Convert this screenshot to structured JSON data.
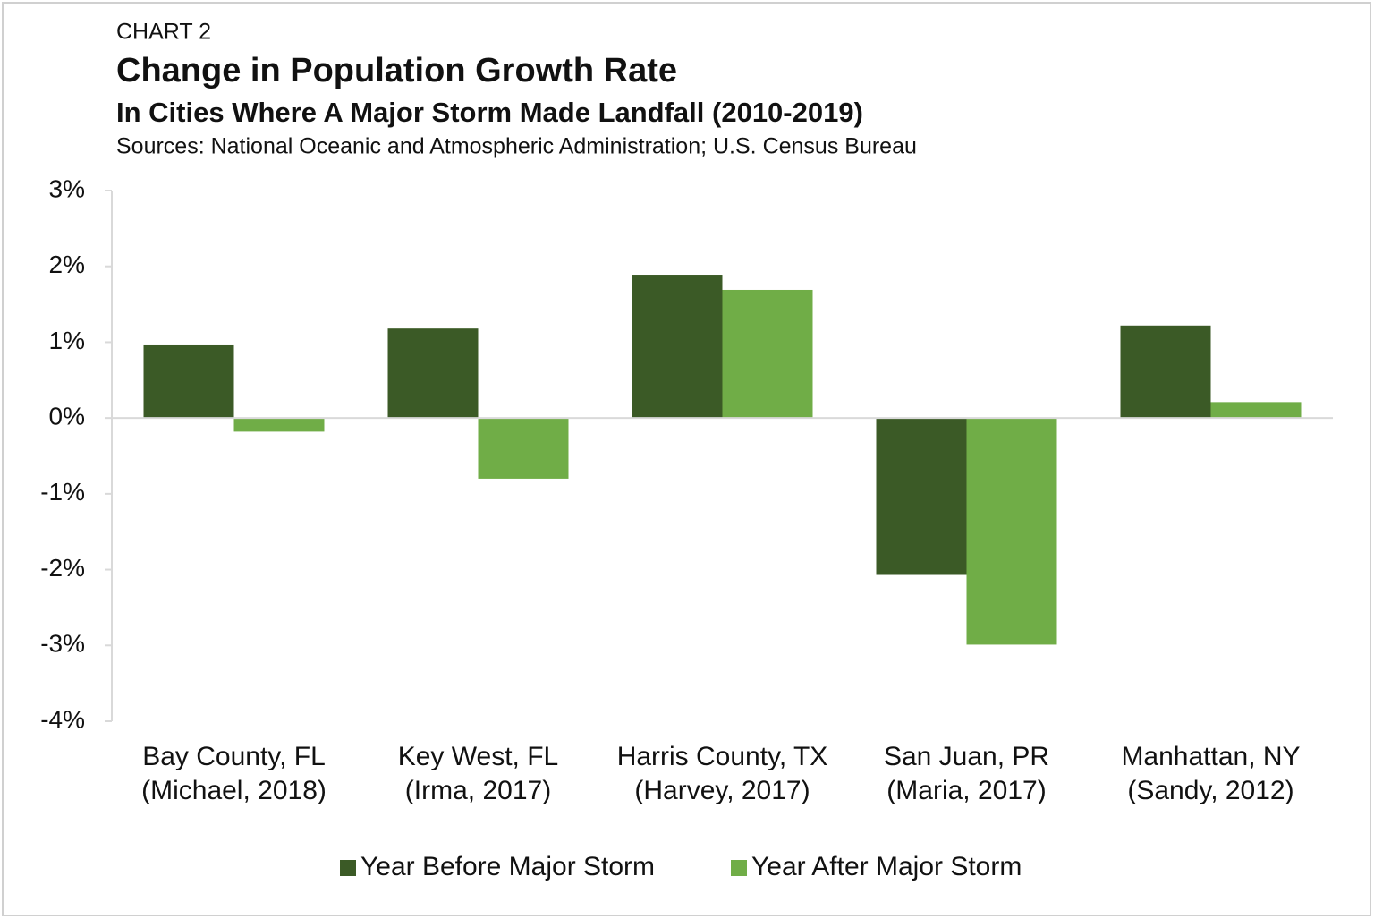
{
  "chart_data": {
    "type": "bar",
    "kicker": "CHART 2",
    "title": "Change in Population Growth Rate",
    "subtitle": "In Cities Where A Major Storm Made Landfall (2010-2019)",
    "source": "Sources: National Oceanic and Atmospheric Administration; U.S. Census Bureau",
    "categories": [
      [
        "Bay County, FL",
        "(Michael, 2018)"
      ],
      [
        "Key West, FL",
        "(Irma, 2017)"
      ],
      [
        "Harris County, TX",
        "(Harvey, 2017)"
      ],
      [
        "San Juan, PR",
        "(Maria, 2017)"
      ],
      [
        "Manhattan, NY",
        "(Sandy, 2012)"
      ]
    ],
    "series": [
      {
        "name": "Year Before Major Storm",
        "color": "#3b5a26",
        "values": [
          0.97,
          1.18,
          1.89,
          -2.07,
          1.22
        ]
      },
      {
        "name": "Year After Major Storm",
        "color": "#70ad47",
        "values": [
          -0.18,
          -0.8,
          1.69,
          -2.99,
          0.21
        ]
      }
    ],
    "ylim": [
      -4,
      3
    ],
    "yticks": [
      {
        "value": -4,
        "label": "-4%"
      },
      {
        "value": -3,
        "label": "-3%"
      },
      {
        "value": -2,
        "label": "-2%"
      },
      {
        "value": -1,
        "label": "-1%"
      },
      {
        "value": 0,
        "label": "0%"
      },
      {
        "value": 1,
        "label": "1%"
      },
      {
        "value": 2,
        "label": "2%"
      },
      {
        "value": 3,
        "label": "3%"
      }
    ],
    "legend": "bottom"
  }
}
